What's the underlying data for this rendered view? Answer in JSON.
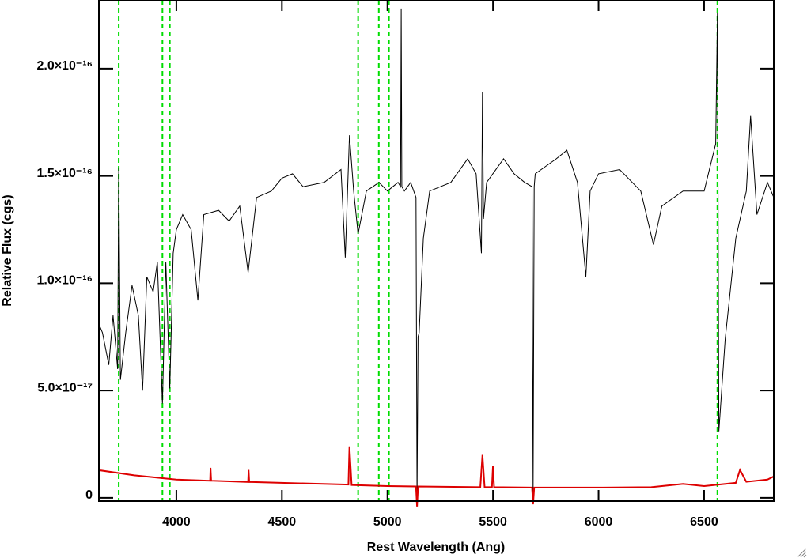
{
  "chart_data": {
    "type": "line",
    "xlabel": "Rest Wavelength (Ang)",
    "ylabel": "Relative Flux (cgs)",
    "xlim": [
      3633,
      6830
    ],
    "ylim": [
      -1.5e-18,
      2.32e-16
    ],
    "xticks": [
      4000,
      4500,
      5000,
      5500,
      6000,
      6500
    ],
    "yticks": [
      {
        "value": 0,
        "label": "0"
      },
      {
        "value": 5e-17,
        "label": "5.0×10⁻¹⁷"
      },
      {
        "value": 1e-16,
        "label": "1.0×10⁻¹⁶"
      },
      {
        "value": 1.5e-16,
        "label": "1.5×10⁻¹⁶"
      },
      {
        "value": 2e-16,
        "label": "2.0×10⁻¹⁶"
      }
    ],
    "vlines": [
      3727,
      3934,
      3969,
      4861,
      4959,
      5007,
      6563
    ],
    "vline_color": "#00dd00",
    "series": [
      {
        "color": "#000000",
        "x": [
          3633,
          3650,
          3680,
          3700,
          3722,
          3727,
          3735,
          3760,
          3790,
          3820,
          3840,
          3860,
          3890,
          3910,
          3934,
          3950,
          3969,
          3985,
          4000,
          4030,
          4070,
          4102,
          4130,
          4200,
          4250,
          4300,
          4340,
          4380,
          4450,
          4500,
          4550,
          4600,
          4700,
          4780,
          4800,
          4820,
          4840,
          4861,
          4900,
          4960,
          5000,
          5050,
          5062,
          5065,
          5068,
          5080,
          5110,
          5135,
          5140,
          5145,
          5150,
          5170,
          5200,
          5300,
          5380,
          5420,
          5445,
          5450,
          5455,
          5470,
          5550,
          5600,
          5650,
          5685,
          5690,
          5695,
          5700,
          5800,
          5850,
          5900,
          5940,
          5960,
          6000,
          6100,
          6200,
          6260,
          6300,
          6400,
          6500,
          6555,
          6563,
          6570,
          6600,
          6650,
          6700,
          6720,
          6750,
          6800,
          6830
        ],
        "values": [
          8.1e-17,
          7.7e-17,
          6.2e-17,
          8.5e-17,
          6e-17,
          1.54e-16,
          5.5e-17,
          7.7e-17,
          9.9e-17,
          8.5e-17,
          5e-17,
          1.03e-16,
          9.6e-17,
          1.1e-16,
          4.4e-17,
          1.1e-16,
          5.1e-17,
          1.14e-16,
          1.25e-16,
          1.32e-16,
          1.25e-16,
          9.2e-17,
          1.32e-16,
          1.34e-16,
          1.29e-16,
          1.36e-16,
          1.05e-16,
          1.4e-16,
          1.43e-16,
          1.49e-16,
          1.51e-16,
          1.45e-16,
          1.47e-16,
          1.53e-16,
          1.12e-16,
          1.69e-16,
          1.43e-16,
          1.23e-16,
          1.43e-16,
          1.47e-16,
          1.43e-16,
          1.47e-16,
          1.45e-16,
          2.28e-16,
          1.45e-16,
          1.43e-16,
          1.47e-16,
          1.4e-16,
          0,
          7.5e-17,
          7.7e-17,
          1.21e-16,
          1.43e-16,
          1.47e-16,
          1.58e-16,
          1.51e-16,
          1.14e-16,
          1.89e-16,
          1.3e-16,
          1.47e-16,
          1.58e-16,
          1.51e-16,
          1.47e-16,
          1.45e-16,
          0,
          1.45e-16,
          1.51e-16,
          1.58e-16,
          1.62e-16,
          1.47e-16,
          1.03e-16,
          1.43e-16,
          1.51e-16,
          1.53e-16,
          1.43e-16,
          1.18e-16,
          1.36e-16,
          1.43e-16,
          1.43e-16,
          1.65e-16,
          2.26e-16,
          3.1e-17,
          7.4e-17,
          1.21e-16,
          1.43e-16,
          1.78e-16,
          1.32e-16,
          1.47e-16,
          1.4e-16
        ]
      },
      {
        "color": "#dd0000",
        "x": [
          3633,
          3800,
          4000,
          4160,
          4162,
          4165,
          4340,
          4342,
          4345,
          4815,
          4820,
          4830,
          5000,
          5135,
          5140,
          5145,
          5440,
          5450,
          5460,
          5495,
          5500,
          5505,
          5685,
          5690,
          5695,
          6000,
          6250,
          6400,
          6500,
          6650,
          6670,
          6700,
          6800,
          6830
        ],
        "values": [
          1.29e-17,
          1.05e-17,
          8.5e-18,
          8e-18,
          1.4e-17,
          8e-18,
          7.4e-18,
          1.3e-17,
          7.4e-18,
          6.2e-18,
          2.4e-17,
          6e-18,
          5.5e-18,
          5.3e-18,
          -4e-18,
          5.3e-18,
          5e-18,
          2e-17,
          5e-18,
          5e-18,
          1.5e-17,
          5e-18,
          4.8e-18,
          -3e-18,
          4.8e-18,
          4.8e-18,
          5e-18,
          6.5e-18,
          5.5e-18,
          7e-18,
          1.3e-17,
          7.5e-18,
          8.5e-18,
          1e-17
        ]
      }
    ]
  }
}
